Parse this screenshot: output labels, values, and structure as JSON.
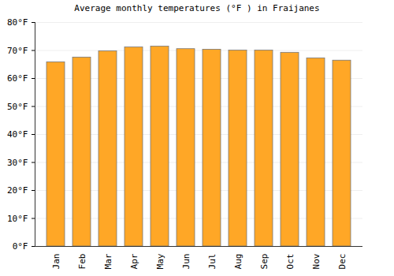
{
  "chart_data": {
    "type": "bar",
    "title": "Average monthly temperatures (°F ) in Fraijanes",
    "categories": [
      "Jan",
      "Feb",
      "Mar",
      "Apr",
      "May",
      "Jun",
      "Jul",
      "Aug",
      "Sep",
      "Oct",
      "Nov",
      "Dec"
    ],
    "values": [
      65.8,
      67.5,
      69.7,
      71.1,
      71.4,
      70.5,
      70.3,
      70.0,
      70.0,
      69.2,
      67.2,
      66.4
    ],
    "color": "#ffa726",
    "ylim": [
      0,
      80
    ],
    "yticks": [
      {
        "value": 0,
        "label": "0°F"
      },
      {
        "value": 10,
        "label": "10°F"
      },
      {
        "value": 20,
        "label": "20°F"
      },
      {
        "value": 30,
        "label": "30°F"
      },
      {
        "value": 40,
        "label": "40°F"
      },
      {
        "value": 50,
        "label": "50°F"
      },
      {
        "value": 60,
        "label": "60°F"
      },
      {
        "value": 70,
        "label": "70°F"
      },
      {
        "value": 80,
        "label": "80°F"
      }
    ],
    "grid": true
  }
}
